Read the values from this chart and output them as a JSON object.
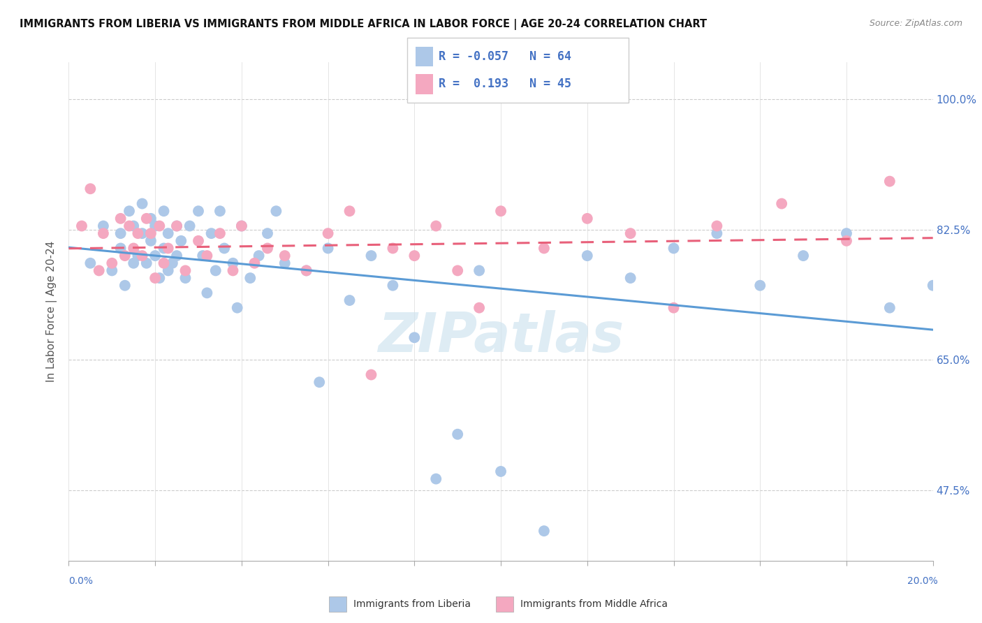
{
  "title": "IMMIGRANTS FROM LIBERIA VS IMMIGRANTS FROM MIDDLE AFRICA IN LABOR FORCE | AGE 20-24 CORRELATION CHART",
  "source": "Source: ZipAtlas.com",
  "ylabel": "In Labor Force | Age 20-24",
  "ytick_labels": [
    "100.0%",
    "82.5%",
    "65.0%",
    "47.5%"
  ],
  "ytick_values": [
    1.0,
    0.825,
    0.65,
    0.475
  ],
  "xlim": [
    0.0,
    0.2
  ],
  "ylim": [
    0.38,
    1.05
  ],
  "color_blue": "#adc8e8",
  "color_pink": "#f4a8c0",
  "line_blue": "#5b9bd5",
  "line_pink": "#e8607a",
  "liberia_x": [
    0.005,
    0.008,
    0.01,
    0.012,
    0.012,
    0.013,
    0.014,
    0.015,
    0.015,
    0.016,
    0.017,
    0.017,
    0.018,
    0.019,
    0.019,
    0.02,
    0.02,
    0.021,
    0.022,
    0.022,
    0.023,
    0.023,
    0.024,
    0.025,
    0.025,
    0.026,
    0.027,
    0.028,
    0.03,
    0.031,
    0.032,
    0.033,
    0.034,
    0.035,
    0.036,
    0.038,
    0.039,
    0.04,
    0.042,
    0.044,
    0.046,
    0.048,
    0.05,
    0.055,
    0.058,
    0.06,
    0.065,
    0.07,
    0.075,
    0.08,
    0.085,
    0.09,
    0.095,
    0.1,
    0.11,
    0.12,
    0.13,
    0.14,
    0.15,
    0.16,
    0.17,
    0.18,
    0.19,
    0.2
  ],
  "liberia_y": [
    0.78,
    0.83,
    0.77,
    0.8,
    0.82,
    0.75,
    0.85,
    0.78,
    0.83,
    0.79,
    0.82,
    0.86,
    0.78,
    0.81,
    0.84,
    0.79,
    0.83,
    0.76,
    0.8,
    0.85,
    0.77,
    0.82,
    0.78,
    0.83,
    0.79,
    0.81,
    0.76,
    0.83,
    0.85,
    0.79,
    0.74,
    0.82,
    0.77,
    0.85,
    0.8,
    0.78,
    0.72,
    0.83,
    0.76,
    0.79,
    0.82,
    0.85,
    0.78,
    0.77,
    0.62,
    0.8,
    0.73,
    0.79,
    0.75,
    0.68,
    0.49,
    0.55,
    0.77,
    0.5,
    0.42,
    0.79,
    0.76,
    0.8,
    0.82,
    0.75,
    0.79,
    0.82,
    0.72,
    0.75
  ],
  "middle_africa_x": [
    0.003,
    0.005,
    0.007,
    0.008,
    0.01,
    0.012,
    0.013,
    0.014,
    0.015,
    0.016,
    0.017,
    0.018,
    0.019,
    0.02,
    0.021,
    0.022,
    0.023,
    0.025,
    0.027,
    0.03,
    0.032,
    0.035,
    0.038,
    0.04,
    0.043,
    0.046,
    0.05,
    0.055,
    0.06,
    0.065,
    0.07,
    0.075,
    0.08,
    0.085,
    0.09,
    0.095,
    0.1,
    0.11,
    0.12,
    0.13,
    0.14,
    0.15,
    0.165,
    0.18,
    0.19
  ],
  "middle_africa_y": [
    0.83,
    0.88,
    0.77,
    0.82,
    0.78,
    0.84,
    0.79,
    0.83,
    0.8,
    0.82,
    0.79,
    0.84,
    0.82,
    0.76,
    0.83,
    0.78,
    0.8,
    0.83,
    0.77,
    0.81,
    0.79,
    0.82,
    0.77,
    0.83,
    0.78,
    0.8,
    0.79,
    0.77,
    0.82,
    0.85,
    0.63,
    0.8,
    0.79,
    0.83,
    0.77,
    0.72,
    0.85,
    0.8,
    0.84,
    0.82,
    0.72,
    0.83,
    0.86,
    0.81,
    0.89
  ],
  "R_liberia": -0.057,
  "N_liberia": 64,
  "R_middle": 0.193,
  "N_middle": 45,
  "watermark": "ZIPatlas",
  "watermark_color": "#d0e4f0",
  "background_color": "#ffffff",
  "grid_color": "#e8e8e8",
  "legend_label_blue": "Immigrants from Liberia",
  "legend_label_pink": "Immigrants from Middle Africa"
}
